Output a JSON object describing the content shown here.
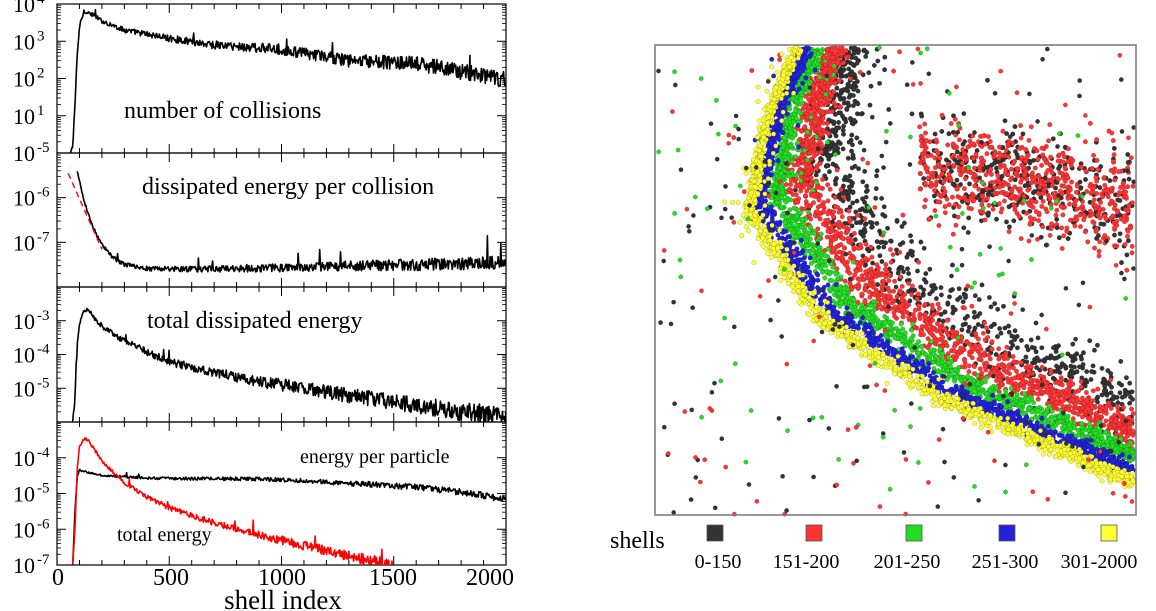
{
  "chart_data": [
    {
      "type": "line",
      "xlabel": "shell index",
      "xlim": [
        0,
        2000
      ],
      "x_ticks": [
        "0",
        "500",
        "1000",
        "1500",
        "2000"
      ],
      "y_scale": "log",
      "panels": [
        {
          "label": "number of collisions",
          "ylim": [
            1,
            10000
          ],
          "y_ticks": [
            {
              "base": "10",
              "exp": "1",
              "value": 10
            },
            {
              "base": "10",
              "exp": "2",
              "value": 100
            },
            {
              "base": "10",
              "exp": "3",
              "value": 1000
            },
            {
              "base": "10",
              "exp": "4",
              "value": 10000
            }
          ],
          "series": [
            {
              "color": "#000000",
              "noise": 0.12,
              "x": [
                60,
                70,
                80,
                90,
                100,
                120,
                150,
                200,
                300,
                500,
                700,
                1000,
                1300,
                1600,
                1900,
                2000
              ],
              "y": [
                1,
                1.5,
                20,
                400,
                2500,
                6500,
                5500,
                3500,
                2000,
                1200,
                800,
                600,
                300,
                250,
                120,
                90
              ]
            }
          ]
        },
        {
          "label": "dissipated energy per collision",
          "ylim": [
            1e-08,
            1e-05
          ],
          "y_ticks": [
            {
              "base": "10",
              "exp": "-5",
              "value": 1e-05
            },
            {
              "base": "10",
              "exp": "-6",
              "value": 1e-06
            },
            {
              "base": "10",
              "exp": "-7",
              "value": 1e-07
            }
          ],
          "series": [
            {
              "color": "#000000",
              "noise": 0.08,
              "x": [
                90,
                110,
                130,
                160,
                200,
                250,
                300,
                400,
                600,
                800,
                1000,
                1200,
                1500,
                1800,
                2000
              ],
              "y": [
                3.8e-06,
                1.4e-06,
                6e-07,
                2.2e-07,
                9e-08,
                4.5e-08,
                3.2e-08,
                2.6e-08,
                2.5e-08,
                2.6e-08,
                2.7e-08,
                2.9e-08,
                3.1e-08,
                3.3e-08,
                3.5e-08
              ]
            },
            {
              "color": "#ff0000",
              "dashed": true,
              "x": [
                50,
                200
              ],
              "y": [
                3.5e-06,
                7e-08
              ]
            }
          ]
        },
        {
          "label": "total dissipated energy",
          "ylim": [
            1e-06,
            0.01
          ],
          "y_ticks": [
            {
              "base": "10",
              "exp": "-3",
              "value": 0.001
            },
            {
              "base": "10",
              "exp": "-4",
              "value": 0.0001
            },
            {
              "base": "10",
              "exp": "-5",
              "value": 1e-05
            }
          ],
          "series": [
            {
              "color": "#000000",
              "noise": 0.15,
              "x": [
                70,
                80,
                90,
                100,
                120,
                140,
                160,
                200,
                300,
                400,
                500,
                700,
                900,
                1100,
                1300,
                1500,
                1700,
                1900,
                2000
              ],
              "y": [
                1e-06,
                5e-06,
                0.0002,
                0.0008,
                0.0022,
                0.002,
                0.0014,
                0.0007,
                0.00025,
                0.00012,
                6e-05,
                3e-05,
                1.6e-05,
                1e-05,
                6e-06,
                4e-06,
                2.5e-06,
                1.7e-06,
                1.3e-06
              ]
            }
          ]
        },
        {
          "label_1": "energy per particle",
          "label_2": "total energy",
          "ylim": [
            1e-07,
            0.001
          ],
          "y_ticks": [
            {
              "base": "10",
              "exp": "-4",
              "value": 0.0001
            },
            {
              "base": "10",
              "exp": "-5",
              "value": 1e-05
            },
            {
              "base": "10",
              "exp": "-6",
              "value": 1e-06
            },
            {
              "base": "10",
              "exp": "-7",
              "value": 1e-07
            }
          ],
          "series": [
            {
              "color": "#000000",
              "noise": 0.05,
              "x": [
                70,
                80,
                90,
                100,
                130,
                200,
                400,
                600,
                800,
                1000,
                1200,
                1400,
                1600,
                1800,
                2000
              ],
              "y": [
                1e-07,
                3e-06,
                3e-05,
                4.5e-05,
                4e-05,
                3.2e-05,
                2.7e-05,
                2.6e-05,
                2.6e-05,
                2.4e-05,
                2.1e-05,
                1.8e-05,
                1.5e-05,
                1.1e-05,
                7e-06
              ]
            },
            {
              "color": "#ff0000",
              "noise": 0.08,
              "x": [
                70,
                80,
                90,
                100,
                120,
                140,
                160,
                200,
                300,
                400,
                500,
                700,
                900,
                1100,
                1300,
                1500
              ],
              "y": [
                1e-07,
                1e-06,
                5e-05,
                0.0002,
                0.00035,
                0.0003,
                0.0002,
                8e-05,
                2e-05,
                8e-06,
                4e-06,
                1.5e-06,
                7e-07,
                3.5e-07,
                1.8e-07,
                1e-07
              ]
            }
          ]
        }
      ]
    },
    {
      "type": "scatter",
      "legend_title": "shells",
      "legend": [
        {
          "label": "0-150",
          "color": "#333333"
        },
        {
          "label": "151-200",
          "color": "#ff3333"
        },
        {
          "label": "201-250",
          "color": "#22dd22"
        },
        {
          "label": "251-300",
          "color": "#2222dd"
        },
        {
          "label": "301-2000",
          "color": "#ffff33"
        }
      ]
    }
  ]
}
